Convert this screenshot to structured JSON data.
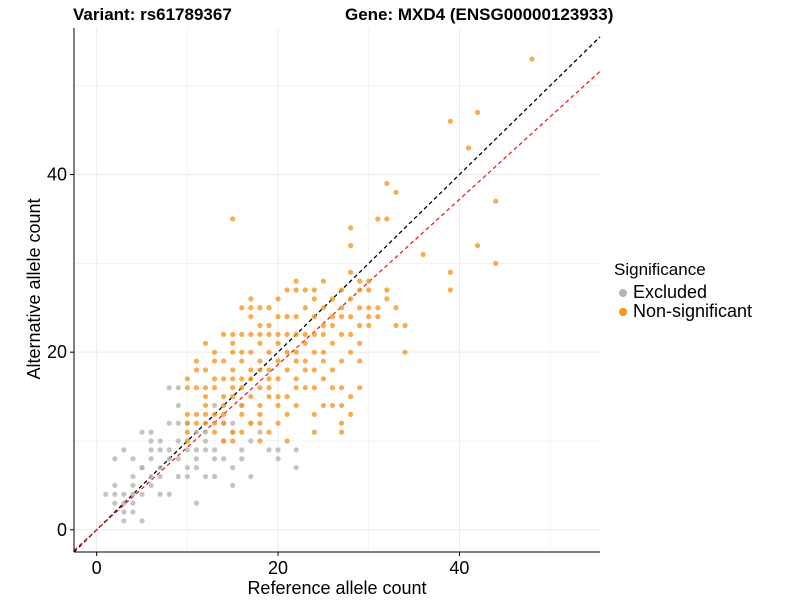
{
  "chart_data": {
    "type": "scatter",
    "title_left": "Variant: rs61789367",
    "title_right": "Gene: MXD4 (ENSG00000123933)",
    "xlabel": "Reference allele count",
    "ylabel": "Alternative allele count",
    "xlim": [
      -2.5,
      55.5
    ],
    "ylim": [
      -2.5,
      56.5
    ],
    "xticks": [
      0,
      20,
      40
    ],
    "yticks": [
      0,
      20,
      40
    ],
    "grid": true,
    "legend": {
      "title": "Significance",
      "position": "right",
      "items": [
        {
          "label": "Excluded",
          "color": "#b3b3b3"
        },
        {
          "label": "Non-significant",
          "color": "#f5961e"
        }
      ]
    },
    "reference_lines": [
      {
        "slope": 1.0,
        "intercept": 0,
        "color": "#000000",
        "style": "dashed"
      },
      {
        "slope": 0.93,
        "intercept": 0,
        "color": "#e8221f",
        "style": "dashed"
      }
    ],
    "series": [
      {
        "name": "Excluded",
        "color": "#b3b3b3",
        "points": [
          [
            1,
            4
          ],
          [
            2,
            3
          ],
          [
            2,
            4
          ],
          [
            2,
            8
          ],
          [
            3,
            2
          ],
          [
            3,
            3
          ],
          [
            3,
            4
          ],
          [
            3,
            9
          ],
          [
            3,
            1
          ],
          [
            4,
            3
          ],
          [
            4,
            5
          ],
          [
            4,
            8
          ],
          [
            4,
            6
          ],
          [
            4,
            2
          ],
          [
            5,
            1
          ],
          [
            5,
            4
          ],
          [
            5,
            11
          ],
          [
            5,
            7
          ],
          [
            6,
            6
          ],
          [
            6,
            9
          ],
          [
            6,
            5
          ],
          [
            6,
            11
          ],
          [
            7,
            4
          ],
          [
            7,
            6
          ],
          [
            7,
            7
          ],
          [
            7,
            10
          ],
          [
            8,
            8
          ],
          [
            8,
            9
          ],
          [
            8,
            12
          ],
          [
            9,
            6
          ],
          [
            9,
            8
          ],
          [
            9,
            10
          ],
          [
            9,
            12
          ],
          [
            9,
            16
          ],
          [
            10,
            6
          ],
          [
            10,
            7
          ],
          [
            10,
            9
          ],
          [
            11,
            3
          ],
          [
            11,
            7
          ],
          [
            11,
            8
          ],
          [
            11,
            11
          ],
          [
            12,
            10
          ],
          [
            12,
            11
          ],
          [
            12,
            6
          ],
          [
            13,
            8
          ],
          [
            13,
            9
          ],
          [
            13,
            14
          ],
          [
            14,
            8
          ],
          [
            14,
            10
          ],
          [
            15,
            5
          ],
          [
            15,
            7
          ],
          [
            15,
            11
          ],
          [
            15,
            12
          ],
          [
            16,
            8
          ],
          [
            16,
            9
          ],
          [
            17,
            6
          ],
          [
            17,
            10
          ],
          [
            19,
            9
          ],
          [
            20,
            8
          ],
          [
            20,
            9
          ],
          [
            22,
            9
          ],
          [
            22,
            7
          ],
          [
            8,
            4
          ],
          [
            6,
            8
          ],
          [
            10,
            12
          ],
          [
            7,
            9
          ],
          [
            14,
            12
          ],
          [
            12,
            9
          ],
          [
            18,
            11
          ],
          [
            16,
            14
          ],
          [
            4,
            4
          ],
          [
            2,
            5
          ],
          [
            9,
            14
          ],
          [
            11,
            9
          ],
          [
            13,
            6
          ],
          [
            17,
            12
          ],
          [
            8,
            16
          ],
          [
            6,
            10
          ],
          [
            5,
            7
          ]
        ]
      },
      {
        "name": "Non-significant",
        "color": "#f5961e",
        "points": [
          [
            10,
            10
          ],
          [
            10,
            11
          ],
          [
            10,
            12
          ],
          [
            10,
            13
          ],
          [
            10,
            16
          ],
          [
            10,
            17
          ],
          [
            11,
            12
          ],
          [
            11,
            13
          ],
          [
            11,
            16
          ],
          [
            11,
            18
          ],
          [
            11,
            19
          ],
          [
            12,
            12
          ],
          [
            12,
            14
          ],
          [
            12,
            15
          ],
          [
            12,
            16
          ],
          [
            12,
            18
          ],
          [
            12,
            21
          ],
          [
            13,
            11
          ],
          [
            13,
            12
          ],
          [
            13,
            13
          ],
          [
            13,
            16
          ],
          [
            13,
            19
          ],
          [
            13,
            20
          ],
          [
            14,
            10
          ],
          [
            14,
            12
          ],
          [
            14,
            13
          ],
          [
            14,
            14
          ],
          [
            14,
            15
          ],
          [
            14,
            17
          ],
          [
            14,
            19
          ],
          [
            14,
            22
          ],
          [
            15,
            10
          ],
          [
            15,
            11
          ],
          [
            15,
            15
          ],
          [
            15,
            16
          ],
          [
            15,
            17
          ],
          [
            15,
            18
          ],
          [
            15,
            20
          ],
          [
            15,
            21
          ],
          [
            15,
            22
          ],
          [
            15,
            35
          ],
          [
            16,
            11
          ],
          [
            16,
            13
          ],
          [
            16,
            14
          ],
          [
            16,
            16
          ],
          [
            16,
            19
          ],
          [
            16,
            20
          ],
          [
            16,
            22
          ],
          [
            16,
            25
          ],
          [
            17,
            12
          ],
          [
            17,
            15
          ],
          [
            17,
            17
          ],
          [
            17,
            18
          ],
          [
            17,
            20
          ],
          [
            17,
            22
          ],
          [
            17,
            24
          ],
          [
            17,
            25
          ],
          [
            17,
            26
          ],
          [
            18,
            10
          ],
          [
            18,
            13
          ],
          [
            18,
            14
          ],
          [
            18,
            16
          ],
          [
            18,
            18
          ],
          [
            18,
            19
          ],
          [
            18,
            21
          ],
          [
            18,
            22
          ],
          [
            18,
            23
          ],
          [
            18,
            25
          ],
          [
            19,
            11
          ],
          [
            19,
            15
          ],
          [
            19,
            16
          ],
          [
            19,
            18
          ],
          [
            19,
            20
          ],
          [
            19,
            22
          ],
          [
            19,
            23
          ],
          [
            19,
            25
          ],
          [
            20,
            12
          ],
          [
            20,
            14
          ],
          [
            20,
            17
          ],
          [
            20,
            19
          ],
          [
            20,
            21
          ],
          [
            20,
            22
          ],
          [
            20,
            24
          ],
          [
            20,
            26
          ],
          [
            21,
            10
          ],
          [
            21,
            13
          ],
          [
            21,
            15
          ],
          [
            21,
            18
          ],
          [
            21,
            20
          ],
          [
            21,
            22
          ],
          [
            21,
            27
          ],
          [
            22,
            14
          ],
          [
            22,
            16
          ],
          [
            22,
            17
          ],
          [
            22,
            19
          ],
          [
            22,
            20
          ],
          [
            22,
            24
          ],
          [
            22,
            27
          ],
          [
            22,
            28
          ],
          [
            23,
            16
          ],
          [
            23,
            18
          ],
          [
            23,
            21
          ],
          [
            23,
            22
          ],
          [
            23,
            25
          ],
          [
            23,
            27
          ],
          [
            24,
            11
          ],
          [
            24,
            13
          ],
          [
            24,
            16
          ],
          [
            24,
            20
          ],
          [
            24,
            22
          ],
          [
            24,
            24
          ],
          [
            24,
            26
          ],
          [
            24,
            27
          ],
          [
            25,
            14
          ],
          [
            25,
            17
          ],
          [
            25,
            19
          ],
          [
            25,
            22
          ],
          [
            25,
            23
          ],
          [
            25,
            25
          ],
          [
            25,
            28
          ],
          [
            26,
            14
          ],
          [
            26,
            16
          ],
          [
            26,
            18
          ],
          [
            26,
            21
          ],
          [
            26,
            23
          ],
          [
            26,
            26
          ],
          [
            27,
            11
          ],
          [
            27,
            12
          ],
          [
            27,
            14
          ],
          [
            27,
            16
          ],
          [
            27,
            19
          ],
          [
            27,
            22
          ],
          [
            27,
            24
          ],
          [
            27,
            25
          ],
          [
            27,
            27
          ],
          [
            28,
            13
          ],
          [
            28,
            15
          ],
          [
            28,
            20
          ],
          [
            28,
            22
          ],
          [
            28,
            24
          ],
          [
            28,
            26
          ],
          [
            28,
            29
          ],
          [
            28,
            32
          ],
          [
            28,
            34
          ],
          [
            29,
            16
          ],
          [
            29,
            19
          ],
          [
            29,
            21
          ],
          [
            29,
            23
          ],
          [
            29,
            25
          ],
          [
            29,
            27
          ],
          [
            29,
            28
          ],
          [
            30,
            23
          ],
          [
            30,
            24
          ],
          [
            30,
            25
          ],
          [
            30,
            27
          ],
          [
            31,
            24
          ],
          [
            31,
            25
          ],
          [
            31,
            35
          ],
          [
            32,
            26
          ],
          [
            32,
            27
          ],
          [
            32,
            35
          ],
          [
            32,
            39
          ],
          [
            33,
            23
          ],
          [
            33,
            25
          ],
          [
            33,
            38
          ],
          [
            34,
            20
          ],
          [
            34,
            23
          ],
          [
            36,
            31
          ],
          [
            39,
            27
          ],
          [
            39,
            29
          ],
          [
            39,
            46
          ],
          [
            41,
            43
          ],
          [
            42,
            32
          ],
          [
            42,
            47
          ],
          [
            44,
            30
          ],
          [
            44,
            37
          ],
          [
            48,
            53
          ],
          [
            13,
            17
          ],
          [
            16,
            17
          ],
          [
            19,
            17
          ],
          [
            23,
            19
          ],
          [
            25,
            20
          ],
          [
            26,
            24
          ],
          [
            30,
            28
          ],
          [
            21,
            24
          ],
          [
            24,
            18
          ],
          [
            20,
            15
          ],
          [
            18,
            12
          ],
          [
            22,
            22
          ],
          [
            12,
            13
          ]
        ]
      }
    ]
  }
}
